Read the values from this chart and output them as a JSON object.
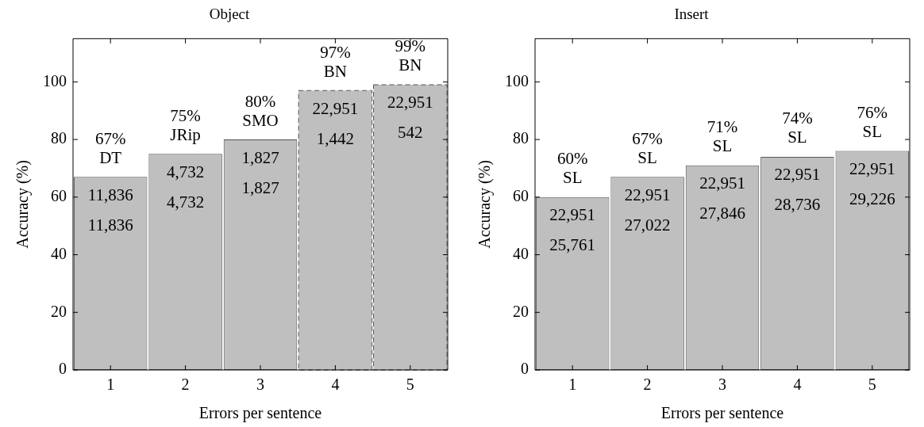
{
  "chart_data": [
    {
      "type": "bar",
      "title": "Object",
      "xlabel": "Errors per sentence",
      "ylabel": "Accuracy (%)",
      "categories": [
        "1",
        "2",
        "3",
        "4",
        "5"
      ],
      "stacked": true,
      "ylim": [
        0,
        115
      ],
      "yticks": [
        0,
        20,
        40,
        60,
        80,
        100
      ],
      "grid": false,
      "legend": false,
      "series": [
        {
          "color": "#bfbfbf",
          "line_style": "solid",
          "values": [
            67,
            75,
            80,
            null,
            null
          ],
          "value_labels": [
            "67%",
            "75%",
            "80%",
            null,
            null
          ]
        },
        {
          "color": "#bfbfbf",
          "line_style": "dashed",
          "values": [
            null,
            null,
            null,
            97,
            99
          ],
          "value_labels": [
            null,
            null,
            null,
            "97%",
            "99%"
          ]
        }
      ],
      "annotations": [
        {
          "text": "DT",
          "x": "1",
          "y": 67
        },
        {
          "text": "11,836",
          "x": "1",
          "y": 67
        },
        {
          "text": "11,836",
          "x": "1",
          "y": 67
        },
        {
          "text": "JRip",
          "x": "2",
          "y": 75
        },
        {
          "text": "4,732",
          "x": "2",
          "y": 75
        },
        {
          "text": "4,732",
          "x": "2",
          "y": 75
        },
        {
          "text": "SMO",
          "x": "3",
          "y": 80
        },
        {
          "text": "1,827",
          "x": "3",
          "y": 80
        },
        {
          "text": "1,827",
          "x": "3",
          "y": 80
        },
        {
          "text": "BN",
          "x": "4",
          "y": 97
        },
        {
          "text": "22,951",
          "x": "4",
          "y": 97
        },
        {
          "text": "1,442",
          "x": "4",
          "y": 97
        },
        {
          "text": "BN",
          "x": "5",
          "y": 99
        },
        {
          "text": "22,951",
          "x": "5",
          "y": 99
        },
        {
          "text": "542",
          "x": "5",
          "y": 99
        }
      ]
    },
    {
      "type": "bar",
      "title": "Insert",
      "xlabel": "Errors per sentence",
      "ylabel": "Accuracy (%)",
      "categories": [
        "1",
        "2",
        "3",
        "4",
        "5"
      ],
      "ylim": [
        0,
        115
      ],
      "yticks": [
        0,
        20,
        40,
        60,
        80,
        100
      ],
      "grid": false,
      "legend": false,
      "series": [
        {
          "color": "#bfbfbf",
          "line_style": "solid",
          "values": [
            60,
            67,
            71,
            74,
            76
          ],
          "value_labels": [
            "60%",
            "67%",
            "71%",
            "74%",
            "76%"
          ]
        }
      ],
      "annotations": [
        {
          "text": "SL",
          "x": "1",
          "y": 60
        },
        {
          "text": "22,951",
          "x": "1",
          "y": 60
        },
        {
          "text": "25,761",
          "x": "1",
          "y": 60
        },
        {
          "text": "SL",
          "x": "2",
          "y": 67
        },
        {
          "text": "22,951",
          "x": "2",
          "y": 67
        },
        {
          "text": "27,022",
          "x": "2",
          "y": 67
        },
        {
          "text": "SL",
          "x": "3",
          "y": 71
        },
        {
          "text": "22,951",
          "x": "3",
          "y": 71
        },
        {
          "text": "27,846",
          "x": "3",
          "y": 71
        },
        {
          "text": "SL",
          "x": "4",
          "y": 74
        },
        {
          "text": "22,951",
          "x": "4",
          "y": 74
        },
        {
          "text": "28,736",
          "x": "4",
          "y": 74
        },
        {
          "text": "SL",
          "x": "5",
          "y": 76
        },
        {
          "text": "22,951",
          "x": "5",
          "y": 76
        },
        {
          "text": "29,226",
          "x": "5",
          "y": 76
        }
      ]
    }
  ]
}
